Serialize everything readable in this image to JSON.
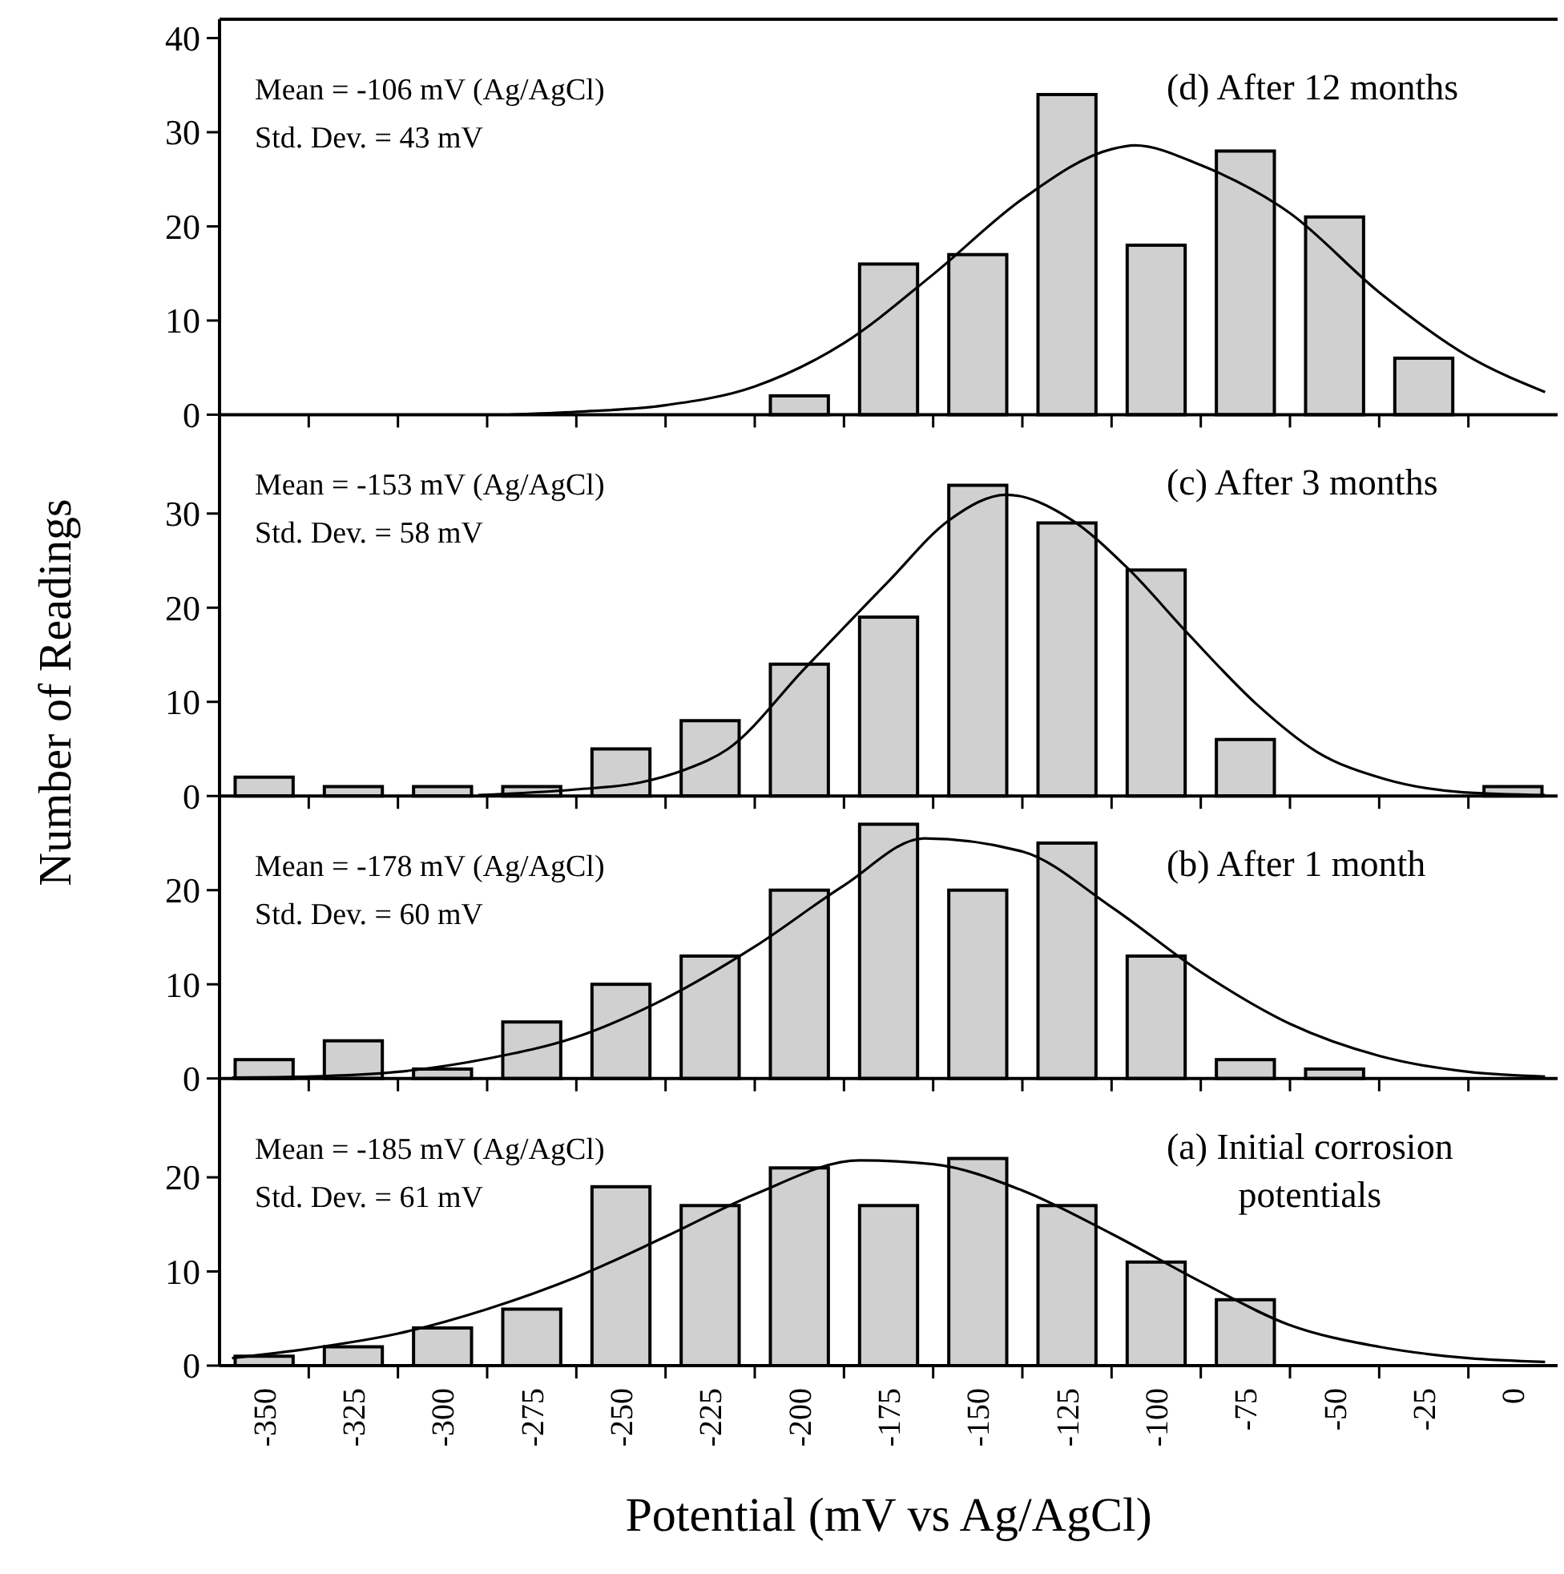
{
  "chart_data": [
    {
      "type": "histogram",
      "title": "(d) After 12 months",
      "ylabel": "Number of Readings",
      "annotations": [
        "Mean = -106 mV (Ag/AgCl)",
        "Std. Dev. = 43 mV"
      ],
      "bins": [
        -362.5,
        -337.5,
        -312.5,
        -287.5,
        -262.5,
        -237.5,
        -212.5,
        -187.5,
        -162.5,
        -137.5,
        -112.5,
        -87.5,
        -62.5,
        -37.5,
        -12.5,
        12.5
      ],
      "values": [
        0,
        0,
        0,
        0,
        0,
        0,
        2,
        16,
        17,
        34,
        18,
        28,
        21,
        6,
        0
      ],
      "color": "#d0d0d0",
      "series": [
        {
          "type": "line",
          "color": "#000000",
          "x": [
            -281,
            -262.5,
            -237.5,
            -212.5,
            -187.5,
            -162.5,
            -137.5,
            -112.5,
            -106,
            -87.5,
            -62.5,
            -37.5,
            -12.5,
            9
          ],
          "values": [
            0,
            0.3,
            1,
            3,
            7.6,
            14.9,
            22.9,
            28.2,
            28.6,
            26.5,
            21.4,
            13,
            6.2,
            2.4
          ]
        }
      ],
      "xlim": [
        -362.5,
        12.5
      ],
      "ylim": [
        0,
        42
      ],
      "yticks": [
        0,
        10,
        20,
        30,
        40
      ],
      "tick_labels": "y",
      "xticks": [
        {
          "value": -337.5,
          "label": null
        },
        {
          "value": -312.5,
          "label": null
        },
        {
          "value": -287.5,
          "label": null
        },
        {
          "value": -262.5,
          "label": null
        },
        {
          "value": -237.5,
          "label": null
        },
        {
          "value": -212.5,
          "label": null
        },
        {
          "value": -187.5,
          "label": null
        },
        {
          "value": -162.5,
          "label": null
        },
        {
          "value": -137.5,
          "label": null
        },
        {
          "value": -112.5,
          "label": null
        },
        {
          "value": -87.5,
          "label": null
        },
        {
          "value": -62.5,
          "label": null
        },
        {
          "value": -37.5,
          "label": null
        },
        {
          "value": -12.5,
          "label": null
        }
      ]
    },
    {
      "type": "histogram",
      "title": "(c) After 3 months",
      "annotations": [
        "Mean = -153 mV (Ag/AgCl)",
        "Std. Dev. = 58 mV"
      ],
      "bins": [
        -362.5,
        -337.5,
        -312.5,
        -287.5,
        -262.5,
        -237.5,
        -212.5,
        -187.5,
        -162.5,
        -137.5,
        -112.5,
        -87.5,
        -62.5,
        -37.5,
        -12.5,
        12.5
      ],
      "values": [
        2,
        1,
        1,
        1,
        5,
        8,
        14,
        19,
        33,
        29,
        24,
        6,
        0,
        0,
        1
      ],
      "color": "#d0d0d0",
      "series": [
        {
          "type": "line",
          "color": "#000000",
          "x": [
            -290,
            -262.5,
            -245,
            -232,
            -220,
            -198.6,
            -175,
            -158,
            -142,
            -124,
            -108,
            -91,
            -72,
            -55,
            -36,
            -14,
            9
          ],
          "values": [
            0.1,
            0.7,
            1.4,
            2.8,
            5,
            13.5,
            22.8,
            29.3,
            32,
            29.4,
            24.2,
            17.2,
            9.8,
            4.7,
            1.8,
            0.4,
            0.1
          ]
        }
      ],
      "xlim": [
        -362.5,
        12.5
      ],
      "ylim": [
        0,
        40.5
      ],
      "yticks": [
        0,
        10,
        20,
        30
      ],
      "tick_labels": "y",
      "xticks": [
        {
          "value": -337.5,
          "label": null
        },
        {
          "value": -312.5,
          "label": null
        },
        {
          "value": -287.5,
          "label": null
        },
        {
          "value": -262.5,
          "label": null
        },
        {
          "value": -237.5,
          "label": null
        },
        {
          "value": -212.5,
          "label": null
        },
        {
          "value": -187.5,
          "label": null
        },
        {
          "value": -162.5,
          "label": null
        },
        {
          "value": -137.5,
          "label": null
        },
        {
          "value": -112.5,
          "label": null
        },
        {
          "value": -87.5,
          "label": null
        },
        {
          "value": -62.5,
          "label": null
        },
        {
          "value": -37.5,
          "label": null
        },
        {
          "value": -12.5,
          "label": null
        }
      ]
    },
    {
      "type": "histogram",
      "title": "(b) After 1 month",
      "annotations": [
        "Mean = -178 mV (Ag/AgCl)",
        "Std. Dev. = 60 mV"
      ],
      "bins": [
        -362.5,
        -337.5,
        -312.5,
        -287.5,
        -262.5,
        -237.5,
        -212.5,
        -187.5,
        -162.5,
        -137.5,
        -112.5,
        -87.5,
        -62.5,
        -37.5,
        -12.5,
        12.5
      ],
      "values": [
        2,
        4,
        1,
        6,
        10,
        13,
        20,
        27,
        20,
        25,
        13,
        2,
        1,
        0,
        0
      ],
      "color": "#d0d0d0",
      "series": [
        {
          "type": "line",
          "color": "#000000",
          "x": [
            -359,
            -337.5,
            -312.5,
            -287.5,
            -262.5,
            -237.5,
            -212.5,
            -187.5,
            -165,
            -137.5,
            -112.5,
            -87.5,
            -62.5,
            -37.5,
            -12.5,
            9
          ],
          "values": [
            0.1,
            0.2,
            0.7,
            2.1,
            4.4,
            8.5,
            14,
            20.5,
            25.5,
            24.1,
            18.2,
            11.3,
            5.8,
            2.4,
            0.7,
            0.2
          ]
        }
      ],
      "xlim": [
        -362.5,
        12.5
      ],
      "ylim": [
        0,
        30
      ],
      "yticks": [
        0,
        10,
        20
      ],
      "tick_labels": "y",
      "xticks": [
        {
          "value": -337.5,
          "label": null
        },
        {
          "value": -312.5,
          "label": null
        },
        {
          "value": -287.5,
          "label": null
        },
        {
          "value": -262.5,
          "label": null
        },
        {
          "value": -237.5,
          "label": null
        },
        {
          "value": -212.5,
          "label": null
        },
        {
          "value": -187.5,
          "label": null
        },
        {
          "value": -162.5,
          "label": null
        },
        {
          "value": -137.5,
          "label": null
        },
        {
          "value": -112.5,
          "label": null
        },
        {
          "value": -87.5,
          "label": null
        },
        {
          "value": -62.5,
          "label": null
        },
        {
          "value": -37.5,
          "label": null
        },
        {
          "value": -12.5,
          "label": null
        }
      ]
    },
    {
      "type": "histogram",
      "title": "(a) Initial corrosion potentials",
      "xlabel": "Potential (mV vs Ag/AgCl)",
      "annotations": [
        "Mean = -185 mV (Ag/AgCl)",
        "Std. Dev. = 61 mV"
      ],
      "bins": [
        -362.5,
        -337.5,
        -312.5,
        -287.5,
        -262.5,
        -237.5,
        -212.5,
        -187.5,
        -162.5,
        -137.5,
        -112.5,
        -87.5,
        -62.5,
        -37.5,
        -12.5,
        12.5
      ],
      "values": [
        1,
        2,
        4,
        6,
        19,
        17,
        21,
        17,
        22,
        17,
        11,
        7,
        0,
        0,
        0
      ],
      "color": "#d0d0d0",
      "series": [
        {
          "type": "line",
          "color": "#000000",
          "x": [
            -359,
            -337.5,
            -312.5,
            -287.5,
            -262.5,
            -237.5,
            -212.5,
            -183,
            -162.5,
            -137.5,
            -112.5,
            -87.5,
            -62.5,
            -37.5,
            -12.5,
            9
          ],
          "values": [
            0.8,
            1.8,
            3.4,
            6,
            9.4,
            13.7,
            18.2,
            21.8,
            21.4,
            18.6,
            14,
            8.9,
            4.3,
            2,
            0.8,
            0.4
          ]
        }
      ],
      "xlim": [
        -362.5,
        12.5
      ],
      "ylim": [
        0,
        30.5
      ],
      "yticks": [
        0,
        10,
        20
      ],
      "xticks": [
        -350,
        {
          "value": -337.5,
          "label": null
        },
        -325,
        {
          "value": -312.5,
          "label": null
        },
        -300,
        {
          "value": -287.5,
          "label": null
        },
        -275,
        {
          "value": -262.5,
          "label": null
        },
        -250,
        {
          "value": -237.5,
          "label": null
        },
        -225,
        {
          "value": -212.5,
          "label": null
        },
        -200,
        {
          "value": -187.5,
          "label": null
        },
        -175,
        {
          "value": -162.5,
          "label": null
        },
        -150,
        {
          "value": -137.5,
          "label": null
        },
        -125,
        {
          "value": -112.5,
          "label": null
        },
        -100,
        {
          "value": -87.5,
          "label": null
        },
        -75,
        {
          "value": -62.5,
          "label": null
        },
        -50,
        {
          "value": -37.5,
          "label": null
        },
        -25,
        {
          "value": -12.5,
          "label": null
        },
        0
      ]
    }
  ]
}
